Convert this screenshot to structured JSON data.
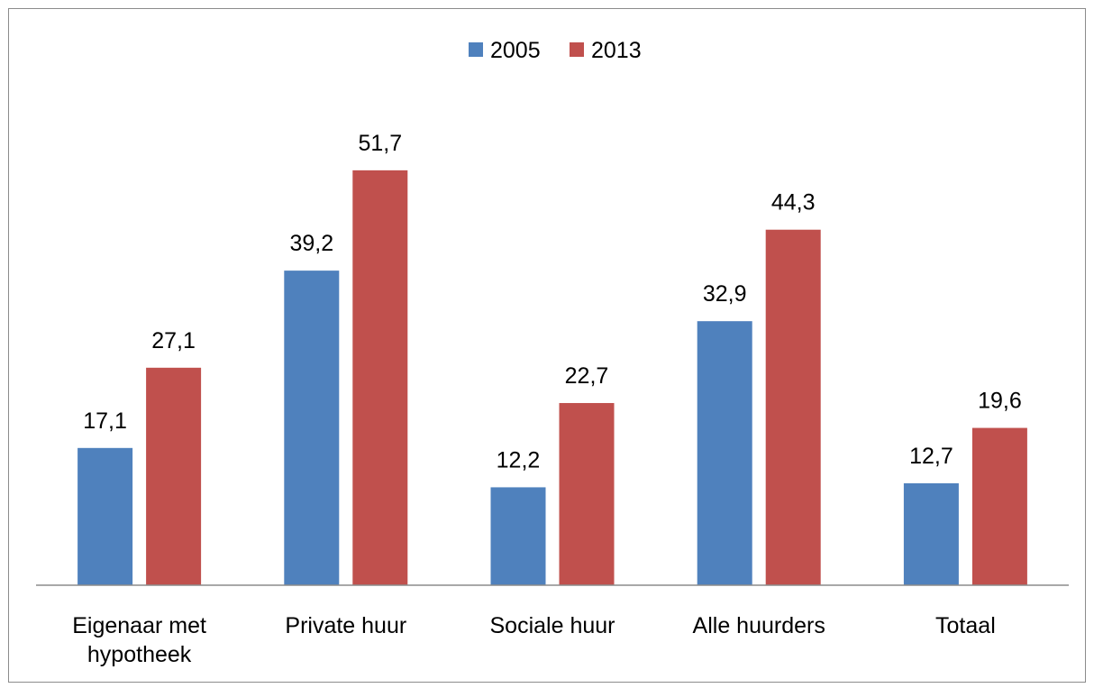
{
  "chart_data": {
    "type": "bar",
    "categories": [
      [
        "Eigenaar met",
        "hypotheek"
      ],
      [
        "Private huur"
      ],
      [
        "Sociale huur"
      ],
      [
        "Alle huurders"
      ],
      [
        "Totaal"
      ]
    ],
    "series": [
      {
        "name": "2005",
        "color": "#4f81bd",
        "values": [
          17.1,
          39.2,
          12.2,
          32.9,
          12.7
        ],
        "labels": [
          "17,1",
          "39,2",
          "12,2",
          "32,9",
          "12,7"
        ]
      },
      {
        "name": "2013",
        "color": "#c0504d",
        "values": [
          27.1,
          51.7,
          22.7,
          44.3,
          19.6
        ],
        "labels": [
          "27,1",
          "51,7",
          "22,7",
          "44,3",
          "19,6"
        ]
      }
    ],
    "ylim": [
      0,
      60
    ],
    "grid": false,
    "legend_position": "top-center",
    "title": "",
    "xlabel": "",
    "ylabel": ""
  }
}
